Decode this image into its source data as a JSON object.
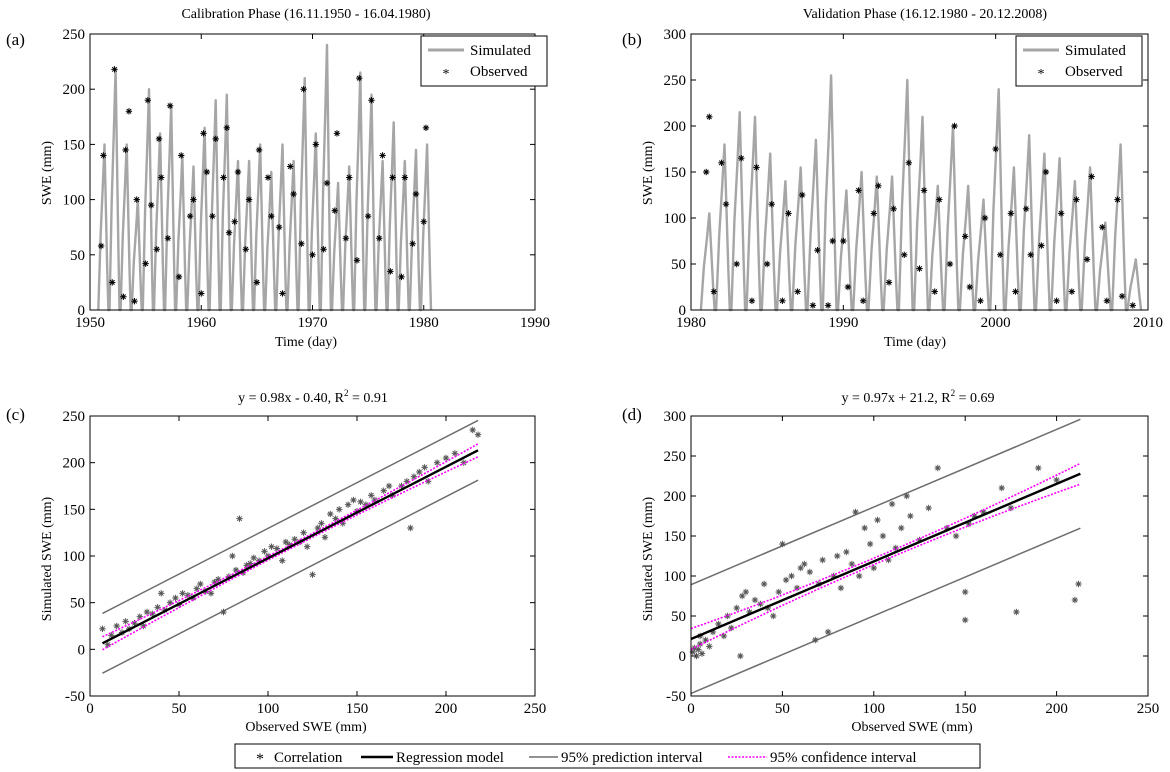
{
  "panels": [
    {
      "letter": "(a)",
      "title": "Calibration Phase (16.11.1950 - 16.04.1980)",
      "xlabel": "Time (day)",
      "ylabel": "SWE (mm)"
    },
    {
      "letter": "(b)",
      "title": "Validation Phase (16.12.1980 - 20.12.2008)",
      "xlabel": "Time (day)",
      "ylabel": "SWE (mm)"
    },
    {
      "letter": "(c)",
      "title": "y =  0.98x - 0.40, R",
      "title_sup": "2",
      "title_end": " = 0.91",
      "xlabel": "Observed SWE (mm)",
      "ylabel": "Simulated SWE (mm)"
    },
    {
      "letter": "(d)",
      "title": "y = 0.97x + 21.2, R",
      "title_sup": "2",
      "title_end": " = 0.69",
      "xlabel": "Observed SWE (mm)",
      "ylabel": "Simulated SWE (mm)"
    }
  ],
  "legend_top": {
    "simulated": "Simulated",
    "observed": "Observed"
  },
  "legend_bottom": {
    "correlation": "Correlation",
    "regression": "Regression model",
    "prediction": "95% prediction interval",
    "confidence": "95% confidence interval"
  },
  "colors": {
    "simulated": "#a6a6a6",
    "observed": "#000000",
    "regression": "#000000",
    "prediction": "#6e6e6e",
    "confidence": "#ff00ff",
    "correlation": "#555555"
  },
  "chart_data": [
    {
      "type": "line",
      "xlim": [
        1950,
        1990
      ],
      "ylim": [
        0,
        250
      ],
      "xticks": [
        1950,
        1960,
        1970,
        1980,
        1990
      ],
      "yticks": [
        0,
        50,
        100,
        150,
        200,
        250
      ],
      "series": [
        {
          "name": "Simulated",
          "kind": "annual_peaks",
          "x": [
            1951.3,
            1952.3,
            1953.3,
            1954.3,
            1955.3,
            1956.3,
            1957.3,
            1958.3,
            1959.3,
            1960.3,
            1961.3,
            1962.3,
            1963.3,
            1964.3,
            1965.3,
            1966.3,
            1967.3,
            1968.3,
            1969.3,
            1970.3,
            1971.3,
            1972.3,
            1973.3,
            1974.3,
            1975.3,
            1976.3,
            1977.3,
            1978.3,
            1979.3,
            1980.3
          ],
          "y": [
            150,
            218,
            150,
            100,
            200,
            160,
            185,
            140,
            130,
            165,
            190,
            195,
            135,
            135,
            150,
            125,
            150,
            135,
            210,
            160,
            240,
            115,
            130,
            215,
            195,
            135,
            170,
            135,
            145,
            150
          ]
        },
        {
          "name": "Observed",
          "kind": "points",
          "x": [
            1951.0,
            1951.2,
            1952.0,
            1952.2,
            1953.0,
            1953.2,
            1953.5,
            1954.0,
            1954.2,
            1955.0,
            1955.2,
            1955.5,
            1956.0,
            1956.2,
            1956.4,
            1957.0,
            1957.2,
            1958.0,
            1958.2,
            1959.0,
            1959.3,
            1960.0,
            1960.2,
            1960.5,
            1961.0,
            1961.3,
            1962.0,
            1962.3,
            1962.5,
            1963.0,
            1963.3,
            1964.0,
            1964.3,
            1965.0,
            1965.2,
            1966.0,
            1966.3,
            1967.0,
            1967.3,
            1968.0,
            1968.3,
            1969.0,
            1969.2,
            1970.0,
            1970.3,
            1971.0,
            1971.3,
            1972.0,
            1972.2,
            1973.0,
            1973.3,
            1974.0,
            1974.2,
            1975.0,
            1975.3,
            1976.0,
            1976.3,
            1977.0,
            1977.2,
            1978.0,
            1978.3,
            1979.0,
            1979.3,
            1980.0,
            1980.2
          ],
          "y": [
            58,
            140,
            25,
            218,
            12,
            145,
            180,
            8,
            100,
            42,
            190,
            95,
            55,
            155,
            120,
            65,
            185,
            30,
            140,
            85,
            100,
            15,
            160,
            125,
            85,
            155,
            120,
            165,
            70,
            80,
            125,
            55,
            100,
            25,
            145,
            120,
            85,
            75,
            15,
            130,
            105,
            60,
            200,
            50,
            150,
            55,
            115,
            90,
            160,
            65,
            120,
            45,
            210,
            85,
            190,
            65,
            140,
            35,
            120,
            30,
            120,
            60,
            105,
            80,
            165
          ]
        }
      ]
    },
    {
      "type": "line",
      "xlim": [
        1980,
        2010
      ],
      "ylim": [
        0,
        300
      ],
      "xticks": [
        1980,
        1990,
        2000,
        2010
      ],
      "yticks": [
        0,
        50,
        100,
        150,
        200,
        250,
        300
      ],
      "series": [
        {
          "name": "Simulated",
          "kind": "annual_peaks",
          "x": [
            1981.2,
            1982.2,
            1983.2,
            1984.2,
            1985.2,
            1986.2,
            1987.2,
            1988.2,
            1989.2,
            1990.2,
            1991.2,
            1992.2,
            1993.2,
            1994.2,
            1995.2,
            1996.2,
            1997.2,
            1998.2,
            1999.2,
            2000.2,
            2001.2,
            2002.2,
            2003.2,
            2004.2,
            2005.2,
            2006.2,
            2007.2,
            2008.2,
            2009.2
          ],
          "y": [
            105,
            180,
            215,
            210,
            170,
            140,
            155,
            185,
            255,
            130,
            150,
            145,
            145,
            250,
            210,
            135,
            200,
            135,
            120,
            240,
            155,
            190,
            170,
            165,
            140,
            155,
            95,
            180,
            55
          ]
        },
        {
          "name": "Observed",
          "kind": "points",
          "x": [
            1981.0,
            1981.2,
            1981.5,
            1982.0,
            1982.3,
            1983.0,
            1983.3,
            1984.0,
            1984.3,
            1985.0,
            1985.3,
            1986.0,
            1986.4,
            1987.0,
            1987.3,
            1988.0,
            1988.3,
            1989.0,
            1989.3,
            1990.0,
            1990.3,
            1991.0,
            1991.3,
            1992.0,
            1992.3,
            1993.0,
            1993.3,
            1994.0,
            1994.3,
            1995.0,
            1995.3,
            1996.0,
            1996.3,
            1997.0,
            1997.3,
            1998.0,
            1998.3,
            1999.0,
            1999.3,
            2000.0,
            2000.3,
            2001.0,
            2001.3,
            2002.0,
            2002.3,
            2003.0,
            2003.3,
            2004.0,
            2004.3,
            2005.0,
            2005.3,
            2006.0,
            2006.3,
            2007.0,
            2007.3,
            2008.0,
            2008.3,
            2009.0
          ],
          "y": [
            150,
            210,
            20,
            160,
            115,
            50,
            165,
            10,
            155,
            50,
            115,
            10,
            105,
            20,
            125,
            5,
            65,
            5,
            75,
            75,
            25,
            130,
            10,
            105,
            135,
            30,
            110,
            60,
            160,
            45,
            130,
            20,
            120,
            50,
            200,
            80,
            25,
            10,
            100,
            175,
            60,
            105,
            20,
            110,
            60,
            70,
            150,
            10,
            105,
            20,
            120,
            55,
            145,
            90,
            10,
            120,
            15,
            5
          ]
        }
      ]
    },
    {
      "type": "scatter",
      "xlim": [
        0,
        250
      ],
      "ylim": [
        -50,
        250
      ],
      "xticks": [
        0,
        50,
        100,
        150,
        200,
        250
      ],
      "yticks": [
        -50,
        0,
        50,
        100,
        150,
        200,
        250
      ],
      "regression": {
        "slope": 0.98,
        "intercept": -0.4,
        "x_range": [
          7,
          218
        ]
      },
      "confidence_halfwidth": {
        "at_ends": 7,
        "at_mean": 2
      },
      "prediction_halfwidth": 32,
      "series": [
        {
          "name": "Correlation",
          "x": [
            7,
            10,
            12,
            15,
            18,
            20,
            22,
            25,
            28,
            30,
            32,
            35,
            38,
            40,
            42,
            45,
            48,
            50,
            52,
            55,
            58,
            60,
            62,
            65,
            68,
            70,
            72,
            75,
            78,
            80,
            82,
            84,
            86,
            88,
            90,
            92,
            95,
            98,
            100,
            102,
            105,
            108,
            110,
            112,
            115,
            118,
            120,
            122,
            125,
            128,
            130,
            132,
            135,
            138,
            140,
            142,
            145,
            148,
            150,
            152,
            155,
            158,
            160,
            165,
            168,
            170,
            175,
            178,
            180,
            182,
            185,
            188,
            190,
            195,
            200,
            205,
            210,
            215,
            218
          ],
          "y": [
            22,
            5,
            15,
            25,
            18,
            30,
            22,
            28,
            35,
            25,
            40,
            38,
            45,
            60,
            42,
            50,
            55,
            48,
            60,
            58,
            55,
            65,
            70,
            62,
            60,
            72,
            75,
            40,
            78,
            100,
            85,
            140,
            82,
            90,
            92,
            98,
            95,
            105,
            100,
            110,
            108,
            95,
            115,
            112,
            118,
            115,
            125,
            110,
            80,
            130,
            135,
            120,
            145,
            140,
            150,
            135,
            155,
            160,
            148,
            158,
            155,
            165,
            160,
            170,
            175,
            165,
            175,
            180,
            130,
            185,
            190,
            195,
            180,
            200,
            205,
            210,
            200,
            235,
            230
          ]
        }
      ]
    },
    {
      "type": "scatter",
      "xlim": [
        0,
        250
      ],
      "ylim": [
        -50,
        300
      ],
      "xticks": [
        0,
        50,
        100,
        150,
        200,
        250
      ],
      "yticks": [
        -50,
        0,
        50,
        100,
        150,
        200,
        250,
        300
      ],
      "regression": {
        "slope": 0.97,
        "intercept": 21.2,
        "x_range": [
          0,
          213
        ]
      },
      "confidence_halfwidth": {
        "at_ends": 13,
        "at_mean": 4
      },
      "prediction_halfwidth": 68,
      "series": [
        {
          "name": "Correlation",
          "x": [
            1,
            2,
            3,
            4,
            5,
            5,
            6,
            8,
            10,
            12,
            15,
            18,
            20,
            22,
            25,
            27,
            28,
            30,
            32,
            35,
            38,
            40,
            42,
            45,
            48,
            50,
            52,
            55,
            58,
            60,
            62,
            65,
            68,
            70,
            72,
            75,
            78,
            80,
            82,
            85,
            88,
            90,
            92,
            95,
            98,
            100,
            102,
            105,
            108,
            110,
            112,
            115,
            118,
            120,
            125,
            130,
            135,
            140,
            145,
            150,
            150,
            152,
            155,
            160,
            170,
            175,
            178,
            190,
            200,
            210,
            212
          ],
          "y": [
            5,
            10,
            0,
            8,
            15,
            25,
            3,
            20,
            12,
            30,
            40,
            25,
            50,
            35,
            60,
            0,
            75,
            80,
            55,
            70,
            65,
            90,
            60,
            50,
            80,
            140,
            95,
            100,
            85,
            110,
            115,
            105,
            20,
            90,
            120,
            30,
            100,
            125,
            85,
            130,
            115,
            180,
            100,
            160,
            140,
            110,
            170,
            150,
            120,
            190,
            135,
            160,
            200,
            175,
            145,
            185,
            235,
            160,
            150,
            45,
            80,
            165,
            175,
            180,
            210,
            185,
            55,
            235,
            220,
            70,
            90
          ]
        }
      ]
    }
  ]
}
